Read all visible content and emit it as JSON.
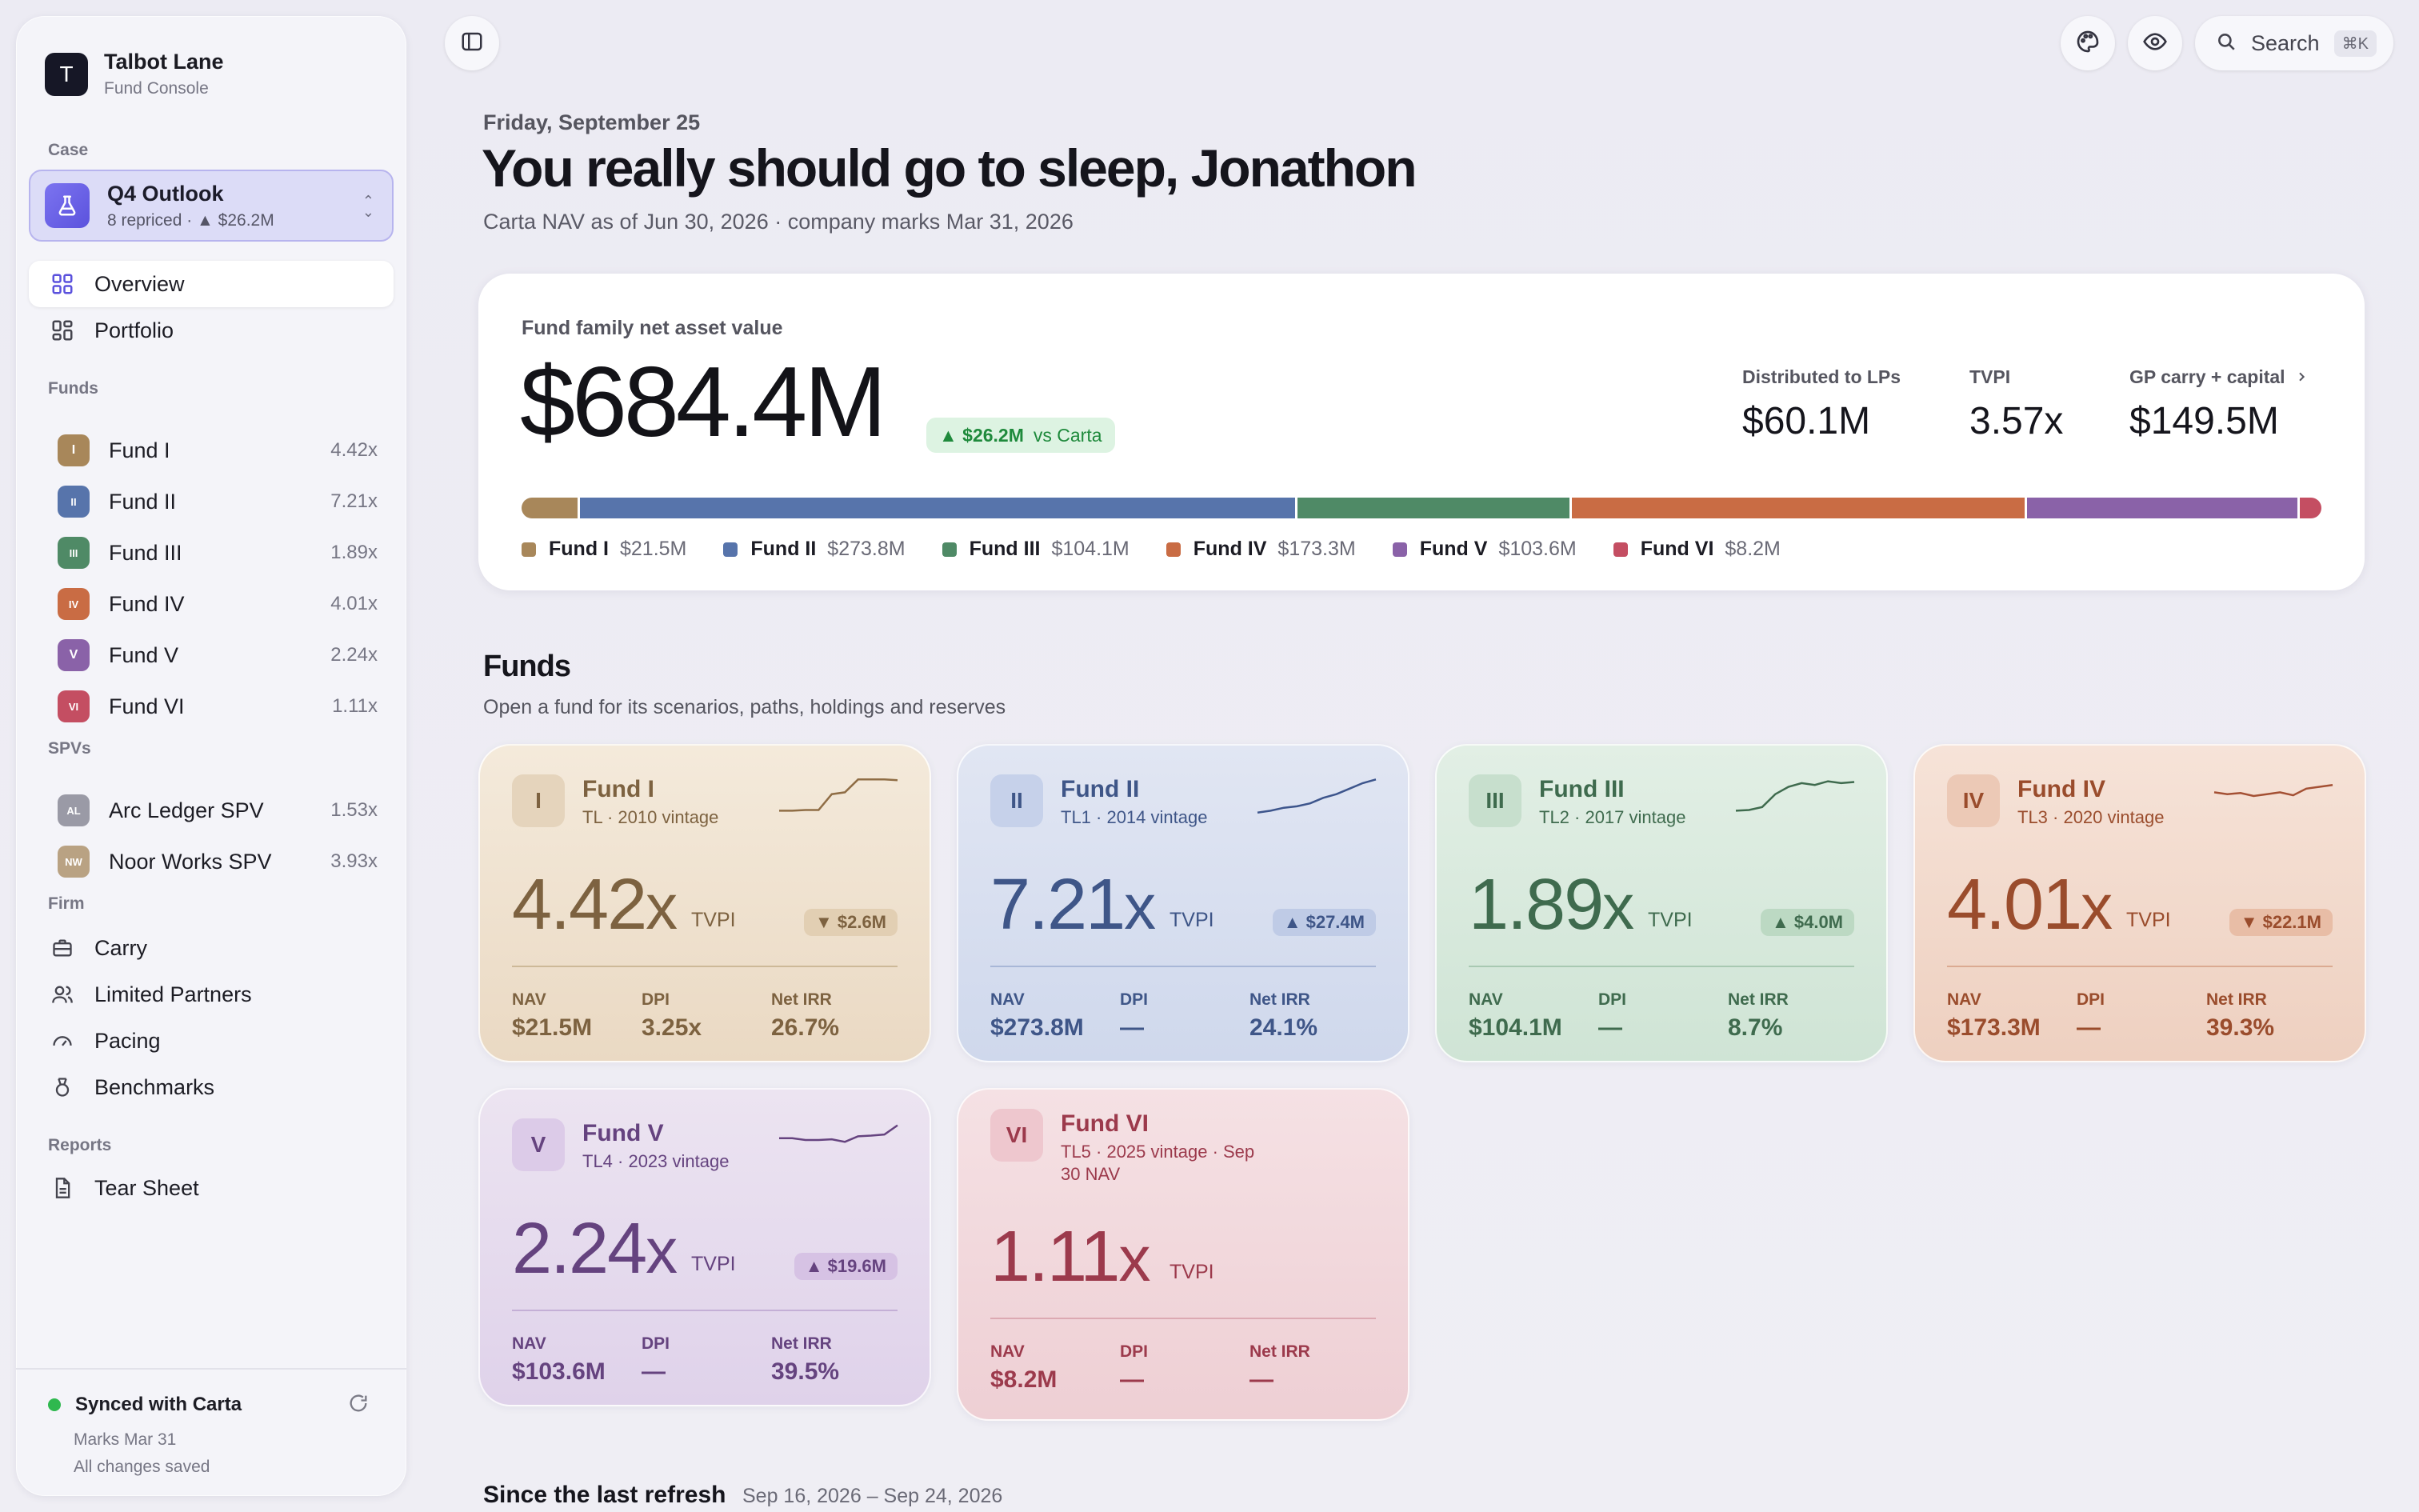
{
  "sidebar": {
    "brand": {
      "logo": "T",
      "name": "Talbot Lane",
      "subtitle": "Fund Console"
    },
    "case_label": "Case",
    "case": {
      "title": "Q4 Outlook",
      "subtitle": "8 repriced · ▲ $26.2M"
    },
    "nav": [
      {
        "label": "Overview",
        "icon": "grid-icon"
      },
      {
        "label": "Portfolio",
        "icon": "portfolio-icon"
      }
    ],
    "funds_label": "Funds",
    "funds": [
      {
        "badge": "I",
        "label": "Fund I",
        "mult": "4.42x",
        "color": "#a8875a"
      },
      {
        "badge": "II",
        "label": "Fund II",
        "mult": "7.21x",
        "color": "#5774ab"
      },
      {
        "badge": "III",
        "label": "Fund III",
        "mult": "1.89x",
        "color": "#4f8a66"
      },
      {
        "badge": "IV",
        "label": "Fund IV",
        "mult": "4.01x",
        "color": "#c96c44"
      },
      {
        "badge": "V",
        "label": "Fund V",
        "mult": "2.24x",
        "color": "#8a62a8"
      },
      {
        "badge": "VI",
        "label": "Fund VI",
        "mult": "1.11x",
        "color": "#c44e62"
      }
    ],
    "spvs_label": "SPVs",
    "spvs": [
      {
        "badge": "AL",
        "label": "Arc Ledger SPV",
        "mult": "1.53x",
        "color": "#9a9aa6"
      },
      {
        "badge": "NW",
        "label": "Noor Works SPV",
        "mult": "3.93x",
        "color": "#b9a283"
      }
    ],
    "firm_label": "Firm",
    "firm": [
      {
        "label": "Carry",
        "icon": "briefcase-icon"
      },
      {
        "label": "Limited Partners",
        "icon": "users-icon"
      },
      {
        "label": "Pacing",
        "icon": "gauge-icon"
      },
      {
        "label": "Benchmarks",
        "icon": "medal-icon"
      }
    ],
    "reports_label": "Reports",
    "reports": [
      {
        "label": "Tear Sheet",
        "icon": "document-icon"
      }
    ],
    "sync": {
      "title": "Synced with Carta",
      "line1": "Marks Mar 31",
      "line2": "All changes saved"
    }
  },
  "topbar": {
    "search_placeholder": "Search",
    "shortcut": "⌘K"
  },
  "header": {
    "date": "Friday, September 25",
    "greeting": "You really should go to sleep, Jonathon",
    "asof": "Carta NAV as of Jun 30, 2026 · company marks Mar 31, 2026"
  },
  "nav_card": {
    "label": "Fund family net asset value",
    "value": "$684.4M",
    "delta": "▲ $26.2M",
    "delta_vs": "vs Carta",
    "stats": [
      {
        "label": "Distributed to LPs",
        "value": "$60.1M"
      },
      {
        "label": "TVPI",
        "value": "3.57x"
      },
      {
        "label": "GP carry + capital",
        "value": "$149.5M"
      }
    ],
    "segments": [
      {
        "name": "Fund I",
        "value_label": "$21.5M",
        "value": 21.5,
        "color": "#a8875a"
      },
      {
        "name": "Fund II",
        "value_label": "$273.8M",
        "value": 273.8,
        "color": "#5774ab"
      },
      {
        "name": "Fund III",
        "value_label": "$104.1M",
        "value": 104.1,
        "color": "#4f8a66"
      },
      {
        "name": "Fund IV",
        "value_label": "$173.3M",
        "value": 173.3,
        "color": "#c96c44"
      },
      {
        "name": "Fund V",
        "value_label": "$103.6M",
        "value": 103.6,
        "color": "#8a62a8"
      },
      {
        "name": "Fund VI",
        "value_label": "$8.2M",
        "value": 8.2,
        "color": "#c44e62"
      }
    ]
  },
  "funds_section": {
    "title": "Funds",
    "subtitle": "Open a fund for its scenarios, paths, holdings and reserves"
  },
  "fund_cards": [
    {
      "badge": "I",
      "name": "Fund I",
      "meta": "TL · 2010 vintage",
      "mult": "4.42",
      "x": "x",
      "tvpi": "TVPI",
      "delta": "▼ $2.6M",
      "nav_label": "NAV",
      "nav": "$21.5M",
      "dpi_label": "DPI",
      "dpi": "3.25x",
      "irr_label": "Net IRR",
      "irr": "26.7%",
      "spark": [
        0.1,
        0.1,
        0.12,
        0.12,
        0.55,
        0.6,
        0.95,
        0.95,
        0.95,
        0.93
      ],
      "theme": {
        "bg1": "#f4eadb",
        "bg2": "#ead9c3",
        "text": "#7d6240",
        "badge_bg": "#e5d4bc",
        "delta_bg": "#e2cfb3",
        "rule": "#cdb998",
        "spark": "#8f6d45"
      }
    },
    {
      "badge": "II",
      "name": "Fund II",
      "meta": "TL1 · 2014 vintage",
      "mult": "7.21",
      "x": "x",
      "tvpi": "TVPI",
      "delta": "▲ $27.4M",
      "nav_label": "NAV",
      "nav": "$273.8M",
      "dpi_label": "DPI",
      "dpi": "—",
      "irr_label": "Net IRR",
      "irr": "24.1%",
      "spark": [
        0.05,
        0.1,
        0.18,
        0.22,
        0.3,
        0.45,
        0.55,
        0.7,
        0.85,
        0.95
      ],
      "theme": {
        "bg1": "#e1e6f3",
        "bg2": "#cfd8ec",
        "text": "#3f5688",
        "badge_bg": "#c6d1ea",
        "delta_bg": "#bfcbe6",
        "rule": "#a8b7d7",
        "spark": "#3d558c"
      }
    },
    {
      "badge": "III",
      "name": "Fund III",
      "meta": "TL2 · 2017 vintage",
      "mult": "1.89",
      "x": "x",
      "tvpi": "TVPI",
      "delta": "▲ $4.0M",
      "nav_label": "NAV",
      "nav": "$104.1M",
      "dpi_label": "DPI",
      "dpi": "—",
      "irr_label": "Net IRR",
      "irr": "8.7%",
      "spark": [
        0.1,
        0.12,
        0.2,
        0.55,
        0.75,
        0.85,
        0.8,
        0.9,
        0.85,
        0.88
      ],
      "theme": {
        "bg1": "#e2efe5",
        "bg2": "#cfe4d5",
        "text": "#3f6b4e",
        "badge_bg": "#c7dfcd",
        "delta_bg": "#bcd9c3",
        "rule": "#a8c9b2",
        "spark": "#3f6b4e"
      }
    },
    {
      "badge": "IV",
      "name": "Fund IV",
      "meta": "TL3 · 2020 vintage",
      "mult": "4.01",
      "x": "x",
      "tvpi": "TVPI",
      "delta": "▼ $22.1M",
      "nav_label": "NAV",
      "nav": "$173.3M",
      "dpi_label": "DPI",
      "dpi": "—",
      "irr_label": "Net IRR",
      "irr": "39.3%",
      "spark": [
        0.6,
        0.55,
        0.58,
        0.5,
        0.55,
        0.6,
        0.52,
        0.7,
        0.75,
        0.8
      ],
      "theme": {
        "bg1": "#f6e3d8",
        "bg2": "#eed0c0",
        "text": "#9a4c2c",
        "badge_bg": "#ecc9b6",
        "delta_bg": "#e8bda6",
        "rule": "#dbaa92",
        "spark": "#a45033"
      }
    },
    {
      "badge": "V",
      "name": "Fund V",
      "meta": "TL4 · 2023 vintage",
      "mult": "2.24",
      "x": "x",
      "tvpi": "TVPI",
      "delta": "▲ $19.6M",
      "nav_label": "NAV",
      "nav": "$103.6M",
      "dpi_label": "DPI",
      "dpi": "—",
      "irr_label": "Net IRR",
      "irr": "39.5%",
      "spark": [
        0.55,
        0.55,
        0.5,
        0.5,
        0.52,
        0.45,
        0.6,
        0.62,
        0.65,
        0.9
      ],
      "theme": {
        "bg1": "#ece4f1",
        "bg2": "#dfd2ea",
        "text": "#65437f",
        "badge_bg": "#dccbe8",
        "delta_bg": "#d6c2e4",
        "rule": "#c4afd6",
        "spark": "#65437f"
      }
    },
    {
      "badge": "VI",
      "name": "Fund VI",
      "meta": "TL5 · 2025 vintage · Sep 30 NAV",
      "mult": "1.11",
      "x": "x",
      "tvpi": "TVPI",
      "delta": "",
      "nav_label": "NAV",
      "nav": "$8.2M",
      "dpi_label": "DPI",
      "dpi": "—",
      "irr_label": "Net IRR",
      "irr": "—",
      "spark": [],
      "theme": {
        "bg1": "#f5e1e4",
        "bg2": "#eecfd4",
        "text": "#9c3a4c",
        "badge_bg": "#eec7ce",
        "delta_bg": "#e8bcc4",
        "rule": "#dca9b2",
        "spark": "#9c3a4c"
      }
    }
  ],
  "refresh": {
    "title": "Since the last refresh",
    "range": "Sep 16, 2026 – Sep 24, 2026"
  }
}
